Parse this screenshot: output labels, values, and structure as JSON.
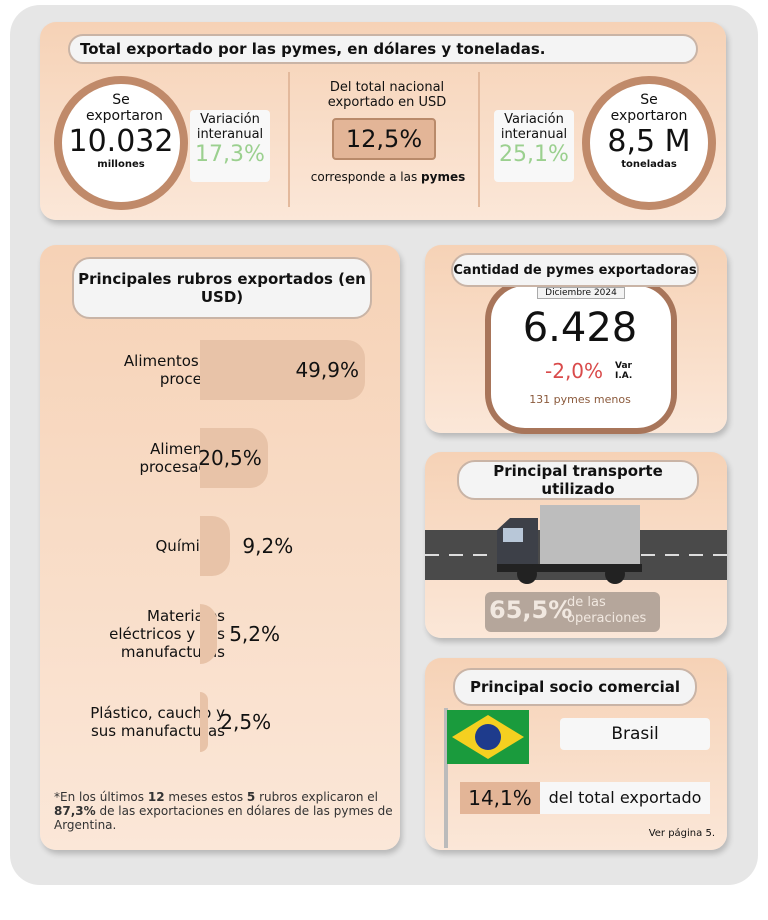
{
  "header": {
    "title": "Total exportado por las pymes, en dólares y toneladas."
  },
  "usd": {
    "label": "Se exportaron",
    "value": "10.032",
    "unit": "millones"
  },
  "var_usd": {
    "label": "Variación interanual",
    "value": "17,3%"
  },
  "share": {
    "label": "Del total nacional exportado en USD",
    "value": "12,5%",
    "note": "corresponde a las",
    "note_bold": "pymes"
  },
  "var_ton": {
    "label": "Variación interanual",
    "value": "25,1%"
  },
  "ton": {
    "label": "Se exportaron",
    "value": "8,5 M",
    "unit": "toneladas"
  },
  "rubros": {
    "title": "Principales rubros exportados (en USD)",
    "items": [
      {
        "label": "Alimentos sin procesar",
        "value": 49.9,
        "value_label": "49,9%"
      },
      {
        "label": "Alimentos procesados",
        "value": 20.5,
        "value_label": "20,5%"
      },
      {
        "label": "Químicos",
        "value": 9.2,
        "value_label": "9,2%"
      },
      {
        "label": "Materiales eléctricos y sus manufacturas",
        "value": 5.2,
        "value_label": "5,2%"
      },
      {
        "label": "Plástico, caucho y sus manufacturas",
        "value": 2.5,
        "value_label": "2,5%"
      }
    ],
    "footnote": [
      "*En los últimos",
      "12",
      "meses estos",
      "5",
      "rubros explicaron el",
      "87,3%",
      "de las exportaciones en dólares de las pymes de Argentina."
    ]
  },
  "pymes": {
    "title": "Cantidad de pymes exportadoras",
    "date": "Diciembre 2024",
    "value": "6.428",
    "variation": "-2,0%",
    "variation_label": "Var I.A.",
    "note": "131 pymes menos"
  },
  "transporte": {
    "title": "Principal transporte utilizado",
    "value": "65,5%",
    "label": "de las operaciones"
  },
  "socio": {
    "title": "Principal socio comercial",
    "country": "Brasil",
    "value": "14,1%",
    "label": "del total exportado",
    "ref": "Ver página 5."
  }
}
